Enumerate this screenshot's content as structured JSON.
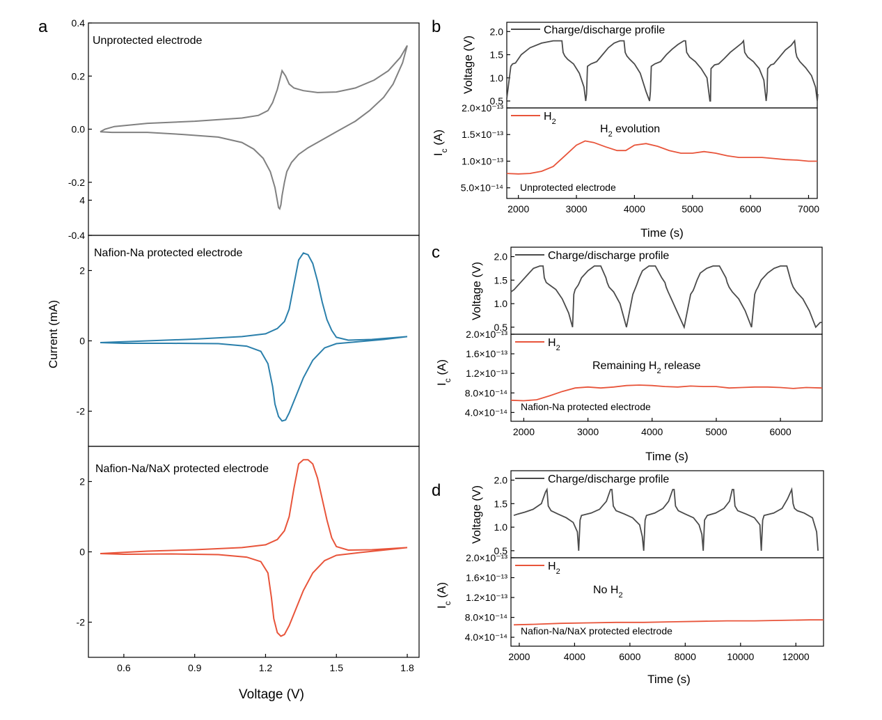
{
  "panel_letters": [
    "a",
    "b",
    "c",
    "d"
  ],
  "chart_data": [
    {
      "id": "a1",
      "type": "line",
      "annotation": "Unprotected electrode",
      "xlabel": "Voltage (V)",
      "ylabel": "Current (mA)",
      "xlim": [
        0.45,
        1.85
      ],
      "ylim": [
        -0.4,
        0.4
      ],
      "xticks": [
        "0.6",
        "0.9",
        "1.2",
        "1.5",
        "1.8"
      ],
      "yticks": [
        "-0.4",
        "-0.2",
        "0.0",
        "0.2",
        "0.4"
      ],
      "color": "#808080",
      "anodic": {
        "x": [
          0.5,
          0.52,
          0.56,
          0.7,
          0.9,
          1.1,
          1.17,
          1.21,
          1.23,
          1.25,
          1.27,
          1.285,
          1.3,
          1.32,
          1.36,
          1.42,
          1.5,
          1.58,
          1.66,
          1.72,
          1.77,
          1.8
        ],
        "y": [
          -0.01,
          0.0,
          0.01,
          0.022,
          0.03,
          0.042,
          0.052,
          0.07,
          0.1,
          0.15,
          0.22,
          0.2,
          0.17,
          0.155,
          0.145,
          0.138,
          0.14,
          0.155,
          0.185,
          0.22,
          0.27,
          0.315
        ]
      },
      "cathodic": {
        "x": [
          1.8,
          1.78,
          1.74,
          1.7,
          1.64,
          1.58,
          1.5,
          1.44,
          1.38,
          1.34,
          1.31,
          1.29,
          1.28,
          1.27,
          1.265,
          1.26,
          1.255,
          1.25,
          1.24,
          1.22,
          1.19,
          1.15,
          1.1,
          1.0,
          0.85,
          0.7,
          0.55,
          0.5
        ],
        "y": [
          0.315,
          0.25,
          0.17,
          0.12,
          0.07,
          0.03,
          -0.01,
          -0.04,
          -0.07,
          -0.095,
          -0.125,
          -0.16,
          -0.2,
          -0.25,
          -0.285,
          -0.3,
          -0.295,
          -0.27,
          -0.22,
          -0.16,
          -0.11,
          -0.075,
          -0.05,
          -0.03,
          -0.02,
          -0.012,
          -0.012,
          -0.01
        ]
      }
    },
    {
      "id": "a2",
      "type": "line",
      "annotation": "Nafion-Na protected electrode",
      "xlim": [
        0.45,
        1.85
      ],
      "ylim": [
        -3,
        3
      ],
      "yticks": [
        "-2",
        "0",
        "2",
        "4"
      ],
      "color": "#2a7fab",
      "anodic": {
        "x": [
          0.5,
          0.7,
          0.9,
          1.1,
          1.2,
          1.25,
          1.28,
          1.3,
          1.32,
          1.34,
          1.36,
          1.38,
          1.4,
          1.42,
          1.44,
          1.46,
          1.48,
          1.5,
          1.55,
          1.65,
          1.8
        ],
        "y": [
          -0.05,
          0.0,
          0.05,
          0.12,
          0.2,
          0.35,
          0.55,
          0.9,
          1.6,
          2.3,
          2.5,
          2.45,
          2.2,
          1.7,
          1.1,
          0.6,
          0.3,
          0.1,
          0.02,
          0.04,
          0.12
        ]
      },
      "cathodic": {
        "x": [
          1.8,
          1.7,
          1.6,
          1.5,
          1.45,
          1.4,
          1.36,
          1.33,
          1.3,
          1.285,
          1.27,
          1.255,
          1.24,
          1.23,
          1.21,
          1.18,
          1.12,
          1.0,
          0.8,
          0.6,
          0.5
        ],
        "y": [
          0.12,
          0.04,
          -0.02,
          -0.08,
          -0.2,
          -0.55,
          -1.05,
          -1.55,
          -2.05,
          -2.25,
          -2.28,
          -2.15,
          -1.8,
          -1.3,
          -0.65,
          -0.3,
          -0.15,
          -0.08,
          -0.07,
          -0.07,
          -0.05
        ]
      }
    },
    {
      "id": "a3",
      "type": "line",
      "annotation": "Nafion-Na/NaX protected electrode",
      "xlim": [
        0.45,
        1.85
      ],
      "ylim": [
        -3,
        3
      ],
      "yticks": [
        "-2",
        "0",
        "2"
      ],
      "color": "#e8543a",
      "anodic": {
        "x": [
          0.5,
          0.7,
          0.9,
          1.1,
          1.2,
          1.25,
          1.28,
          1.3,
          1.32,
          1.34,
          1.36,
          1.38,
          1.4,
          1.42,
          1.44,
          1.46,
          1.48,
          1.5,
          1.55,
          1.65,
          1.8
        ],
        "y": [
          -0.05,
          0.02,
          0.06,
          0.12,
          0.2,
          0.35,
          0.6,
          1.0,
          1.8,
          2.5,
          2.62,
          2.62,
          2.5,
          2.1,
          1.5,
          0.9,
          0.4,
          0.15,
          0.05,
          0.06,
          0.12
        ]
      },
      "cathodic": {
        "x": [
          1.8,
          1.7,
          1.6,
          1.5,
          1.45,
          1.4,
          1.36,
          1.33,
          1.3,
          1.28,
          1.265,
          1.25,
          1.235,
          1.225,
          1.21,
          1.18,
          1.12,
          1.0,
          0.8,
          0.6,
          0.5
        ],
        "y": [
          0.12,
          0.05,
          -0.02,
          -0.1,
          -0.25,
          -0.6,
          -1.1,
          -1.6,
          -2.1,
          -2.35,
          -2.4,
          -2.3,
          -1.9,
          -1.3,
          -0.6,
          -0.28,
          -0.15,
          -0.08,
          -0.06,
          -0.07,
          -0.05
        ]
      }
    },
    {
      "id": "b",
      "type": "line",
      "voltage": {
        "legend": "Charge/discharge profile",
        "ylabel": "Voltage (V)",
        "yticks": [
          "0.5",
          "1.0",
          "1.5",
          "2.0"
        ],
        "ylim": [
          0.35,
          2.2
        ],
        "color": "#4a4a4a",
        "x": [
          1800,
          1870,
          1900,
          1950,
          2050,
          2200,
          2400,
          2600,
          2750,
          2770,
          2800,
          2850,
          2950,
          3050,
          3130,
          3160,
          3175,
          3190,
          3250,
          3350,
          3450,
          3550,
          3650,
          3750,
          3820,
          3840,
          3870,
          3920,
          4000,
          4100,
          4200,
          4260,
          4275,
          4290,
          4350,
          4450,
          4550,
          4650,
          4750,
          4850,
          4880,
          4900,
          4950,
          5050,
          5150,
          5250,
          5300,
          5310,
          5320,
          5380,
          5450,
          5550,
          5650,
          5750,
          5850,
          5880,
          5900,
          5950,
          6050,
          6150,
          6230,
          6270,
          6285,
          6295,
          6350,
          6400,
          6500,
          6600,
          6700,
          6760,
          6780,
          6800,
          6850,
          6950,
          7050,
          7120,
          7150,
          7160
        ],
        "y": [
          0.55,
          1.25,
          1.3,
          1.32,
          1.5,
          1.65,
          1.75,
          1.8,
          1.8,
          1.55,
          1.47,
          1.4,
          1.3,
          1.1,
          0.8,
          0.5,
          0.65,
          1.25,
          1.3,
          1.35,
          1.5,
          1.65,
          1.75,
          1.8,
          1.8,
          1.55,
          1.47,
          1.4,
          1.3,
          1.1,
          0.7,
          0.5,
          0.7,
          1.25,
          1.3,
          1.35,
          1.5,
          1.62,
          1.72,
          1.8,
          1.8,
          1.55,
          1.45,
          1.35,
          1.2,
          1.0,
          0.5,
          0.5,
          1.2,
          1.28,
          1.3,
          1.42,
          1.55,
          1.65,
          1.75,
          1.8,
          1.55,
          1.45,
          1.35,
          1.2,
          0.95,
          0.5,
          0.7,
          1.2,
          1.28,
          1.3,
          1.45,
          1.6,
          1.7,
          1.8,
          1.55,
          1.45,
          1.35,
          1.22,
          1.05,
          0.8,
          0.5,
          0.65
        ]
      },
      "current": {
        "legend": "H2",
        "ylabel": "Ic (A)",
        "yticks": [
          "5.0×10⁻¹⁴",
          "1.0×10⁻¹³",
          "1.5×10⁻¹³",
          "2.0×10⁻¹³"
        ],
        "ylim": [
          3e-14,
          2e-13
        ],
        "color": "#e8543a",
        "x": [
          1800,
          2000,
          2200,
          2400,
          2600,
          2800,
          3000,
          3150,
          3300,
          3500,
          3700,
          3850,
          4000,
          4200,
          4400,
          4600,
          4800,
          5000,
          5200,
          5400,
          5600,
          5800,
          6000,
          6200,
          6400,
          6600,
          6800,
          7000,
          7150
        ],
        "y": [
          7.7e-14,
          7.6e-14,
          7.7e-14,
          8.1e-14,
          9e-14,
          1.1e-13,
          1.3e-13,
          1.38e-13,
          1.35e-13,
          1.27e-13,
          1.2e-13,
          1.2e-13,
          1.3e-13,
          1.33e-13,
          1.28e-13,
          1.2e-13,
          1.15e-13,
          1.15e-13,
          1.18e-13,
          1.15e-13,
          1.1e-13,
          1.07e-13,
          1.07e-13,
          1.07e-13,
          1.05e-13,
          1.03e-13,
          1.02e-13,
          1e-13,
          1e-13
        ]
      },
      "annotation_main": "H2 evolution",
      "annotation_sub": "Unprotected electrode",
      "xlabel": "Time (s)",
      "xlim": [
        1800,
        7150
      ],
      "xticks": [
        2000,
        3000,
        4000,
        5000,
        6000,
        7000
      ]
    },
    {
      "id": "c",
      "type": "line",
      "voltage": {
        "legend": "Charge/discharge profile",
        "ylabel": "Voltage (V)",
        "yticks": [
          "0.5",
          "1.0",
          "1.5",
          "2.0"
        ],
        "ylim": [
          0.35,
          2.2
        ],
        "color": "#4a4a4a",
        "x": [
          1800,
          1850,
          1950,
          2050,
          2150,
          2250,
          2300,
          2320,
          2350,
          2400,
          2500,
          2600,
          2700,
          2760,
          2780,
          2800,
          2850,
          2900,
          3000,
          3100,
          3200,
          3280,
          3300,
          3330,
          3400,
          3500,
          3600,
          3700,
          3730,
          3760,
          3800,
          3850,
          3950,
          4050,
          4150,
          4200,
          4220,
          4250,
          4300,
          4400,
          4500,
          4600,
          4640,
          4660,
          4700,
          4750,
          4850,
          4950,
          5050,
          5150,
          5170,
          5200,
          5250,
          5350,
          5450,
          5550,
          5600,
          5620,
          5650,
          5700,
          5800,
          5900,
          6000,
          6100,
          6150,
          6170,
          6200,
          6250,
          6350,
          6450,
          6550,
          6620,
          6650
        ],
        "y": [
          1.25,
          1.3,
          1.45,
          1.6,
          1.75,
          1.8,
          1.8,
          1.55,
          1.45,
          1.4,
          1.3,
          1.1,
          0.8,
          0.5,
          1.2,
          1.3,
          1.4,
          1.55,
          1.7,
          1.8,
          1.8,
          1.55,
          1.45,
          1.35,
          1.25,
          1.0,
          0.5,
          1.2,
          1.3,
          1.4,
          1.55,
          1.7,
          1.8,
          1.8,
          1.55,
          1.45,
          1.35,
          1.25,
          1.1,
          0.8,
          0.5,
          1.2,
          1.28,
          1.35,
          1.5,
          1.65,
          1.75,
          1.8,
          1.8,
          1.55,
          1.45,
          1.35,
          1.25,
          1.1,
          0.85,
          0.5,
          1.2,
          1.28,
          1.35,
          1.5,
          1.65,
          1.75,
          1.8,
          1.8,
          1.55,
          1.45,
          1.35,
          1.25,
          1.1,
          0.85,
          0.5,
          0.6,
          0.6
        ]
      },
      "current": {
        "legend": "H2",
        "ylabel": "Ic (A)",
        "yticks": [
          "4.0×10⁻¹⁴",
          "8.0×10⁻¹⁴",
          "1.2×10⁻¹³",
          "1.6×10⁻¹³",
          "2.0×10⁻¹³"
        ],
        "ylim": [
          2.2e-14,
          2e-13
        ],
        "color": "#e8543a",
        "x": [
          1800,
          2000,
          2200,
          2400,
          2600,
          2800,
          3000,
          3200,
          3400,
          3600,
          3800,
          4000,
          4200,
          4400,
          4600,
          4800,
          5000,
          5200,
          5400,
          5600,
          5800,
          6000,
          6200,
          6400,
          6650
        ],
        "y": [
          6.5e-14,
          6.4e-14,
          6.6e-14,
          7.4e-14,
          8.3e-14,
          9e-14,
          9.2e-14,
          9e-14,
          9.2e-14,
          9.5e-14,
          9.6e-14,
          9.5e-14,
          9.3e-14,
          9.2e-14,
          9.4e-14,
          9.3e-14,
          9.3e-14,
          9e-14,
          9.1e-14,
          9.2e-14,
          9.2e-14,
          9.1e-14,
          8.9e-14,
          9.1e-14,
          9e-14
        ]
      },
      "annotation_main": "Remaining H2 release",
      "annotation_sub": "Nafion-Na protected electrode",
      "xlabel": "Time (s)",
      "xlim": [
        1800,
        6650
      ],
      "xticks": [
        2000,
        3000,
        4000,
        5000,
        6000
      ]
    },
    {
      "id": "d",
      "type": "line",
      "voltage": {
        "legend": "Charge/discharge profile",
        "ylabel": "Voltage (V)",
        "yticks": [
          "0.5",
          "1.0",
          "1.5",
          "2.0"
        ],
        "ylim": [
          0.35,
          2.2
        ],
        "color": "#4a4a4a",
        "x": [
          1800,
          1950,
          2200,
          2500,
          2800,
          2950,
          3000,
          3050,
          3150,
          3400,
          3700,
          3950,
          4100,
          4150,
          4200,
          4250,
          4600,
          4900,
          5150,
          5300,
          5350,
          5400,
          5500,
          5800,
          6100,
          6350,
          6450,
          6500,
          6550,
          6600,
          6900,
          7200,
          7400,
          7550,
          7600,
          7650,
          7750,
          8000,
          8300,
          8500,
          8600,
          8650,
          8700,
          8800,
          9100,
          9400,
          9600,
          9700,
          9750,
          9800,
          9900,
          10200,
          10500,
          10700,
          10750,
          10800,
          10850,
          11200,
          11500,
          11700,
          11850,
          11900,
          11950,
          12050,
          12300,
          12600,
          12750,
          12800
        ],
        "y": [
          1.25,
          1.28,
          1.32,
          1.38,
          1.5,
          1.75,
          1.8,
          1.45,
          1.35,
          1.28,
          1.2,
          1.1,
          0.9,
          0.5,
          1.15,
          1.25,
          1.3,
          1.38,
          1.55,
          1.8,
          1.8,
          1.45,
          1.35,
          1.28,
          1.2,
          1.05,
          0.8,
          0.5,
          1.15,
          1.25,
          1.3,
          1.4,
          1.55,
          1.8,
          1.8,
          1.45,
          1.35,
          1.28,
          1.2,
          1.05,
          0.85,
          0.5,
          1.15,
          1.25,
          1.3,
          1.4,
          1.55,
          1.8,
          1.8,
          1.45,
          1.35,
          1.28,
          1.2,
          1.05,
          0.5,
          1.15,
          1.25,
          1.3,
          1.4,
          1.6,
          1.8,
          1.5,
          1.4,
          1.35,
          1.3,
          1.2,
          0.9,
          0.5
        ]
      },
      "current": {
        "legend": "H2",
        "ylabel": "Ic (A)",
        "yticks": [
          "4.0×10⁻¹⁴",
          "8.0×10⁻¹⁴",
          "1.2×10⁻¹³",
          "1.6×10⁻¹³",
          "2.0×10⁻¹³"
        ],
        "ylim": [
          2.2e-14,
          2e-13
        ],
        "color": "#e8543a",
        "x": [
          1800,
          2500,
          3500,
          4500,
          5500,
          6500,
          7500,
          8500,
          9500,
          10500,
          11500,
          12500,
          13000
        ],
        "y": [
          6.5e-14,
          6.6e-14,
          6.8e-14,
          6.9e-14,
          7e-14,
          7e-14,
          7.1e-14,
          7.2e-14,
          7.3e-14,
          7.3e-14,
          7.4e-14,
          7.5e-14,
          7.5e-14
        ]
      },
      "annotation_main": "No H2",
      "annotation_sub": "Nafion-Na/NaX protected electrode",
      "xlabel": "Time (s)",
      "xlim": [
        1700,
        13000
      ],
      "xticks": [
        2000,
        4000,
        6000,
        8000,
        10000,
        12000
      ]
    }
  ]
}
